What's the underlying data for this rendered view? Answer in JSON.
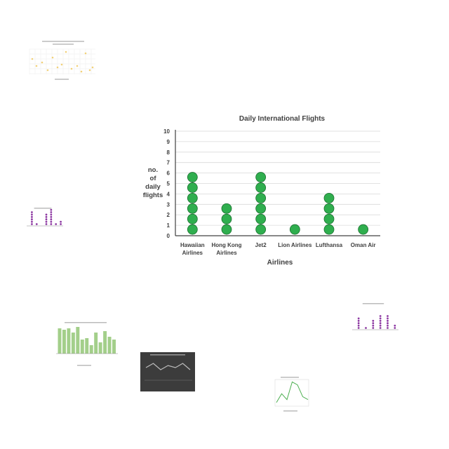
{
  "chart_data": {
    "type": "dot",
    "title": "Daily International Flights",
    "xlabel": "Airlines",
    "ylabel": [
      "no.",
      "of",
      "daily",
      "flights"
    ],
    "ylim": [
      0,
      10
    ],
    "yticks": [
      "0",
      "1",
      "2",
      "3",
      "4",
      "5",
      "6",
      "7",
      "8",
      "9",
      "10"
    ],
    "grid": true,
    "categories": [
      [
        "Hawaiian",
        "Airlines"
      ],
      [
        "Hong Kong",
        "Airlines"
      ],
      [
        "Jet2"
      ],
      [
        "Lion Airlines"
      ],
      [
        "Lufthansa"
      ],
      [
        "Oman Air"
      ]
    ],
    "values": [
      6,
      3,
      6,
      1,
      4,
      1
    ],
    "dot_color": "#2fae4e",
    "dot_stroke": "#1d6f31"
  },
  "thumbnails": {
    "scatter": {
      "kind": "scatter",
      "accent": "#f2d27a"
    },
    "purple_dots_left": {
      "kind": "dot",
      "accent": "#8e3aa3",
      "values": [
        6,
        1,
        0,
        5,
        7,
        1,
        2
      ]
    },
    "purple_dots_right": {
      "kind": "dot",
      "accent": "#8e3aa3",
      "values": [
        5,
        1,
        4,
        6,
        6,
        2
      ]
    },
    "green_bars": {
      "kind": "bar",
      "accent": "#a3cf8a",
      "values": [
        9,
        8.5,
        9,
        7.5,
        9.5,
        5,
        5.5,
        3,
        7.5,
        4,
        8,
        6,
        5
      ]
    },
    "dark_line": {
      "kind": "line",
      "accent": "#bbbbbb",
      "background": "#3c3c3c",
      "values": [
        4,
        6,
        3,
        5,
        4,
        6,
        3
      ]
    },
    "green_line": {
      "kind": "line",
      "accent": "#4caf50",
      "values": [
        1,
        4,
        2,
        8,
        7,
        3,
        2
      ]
    }
  }
}
